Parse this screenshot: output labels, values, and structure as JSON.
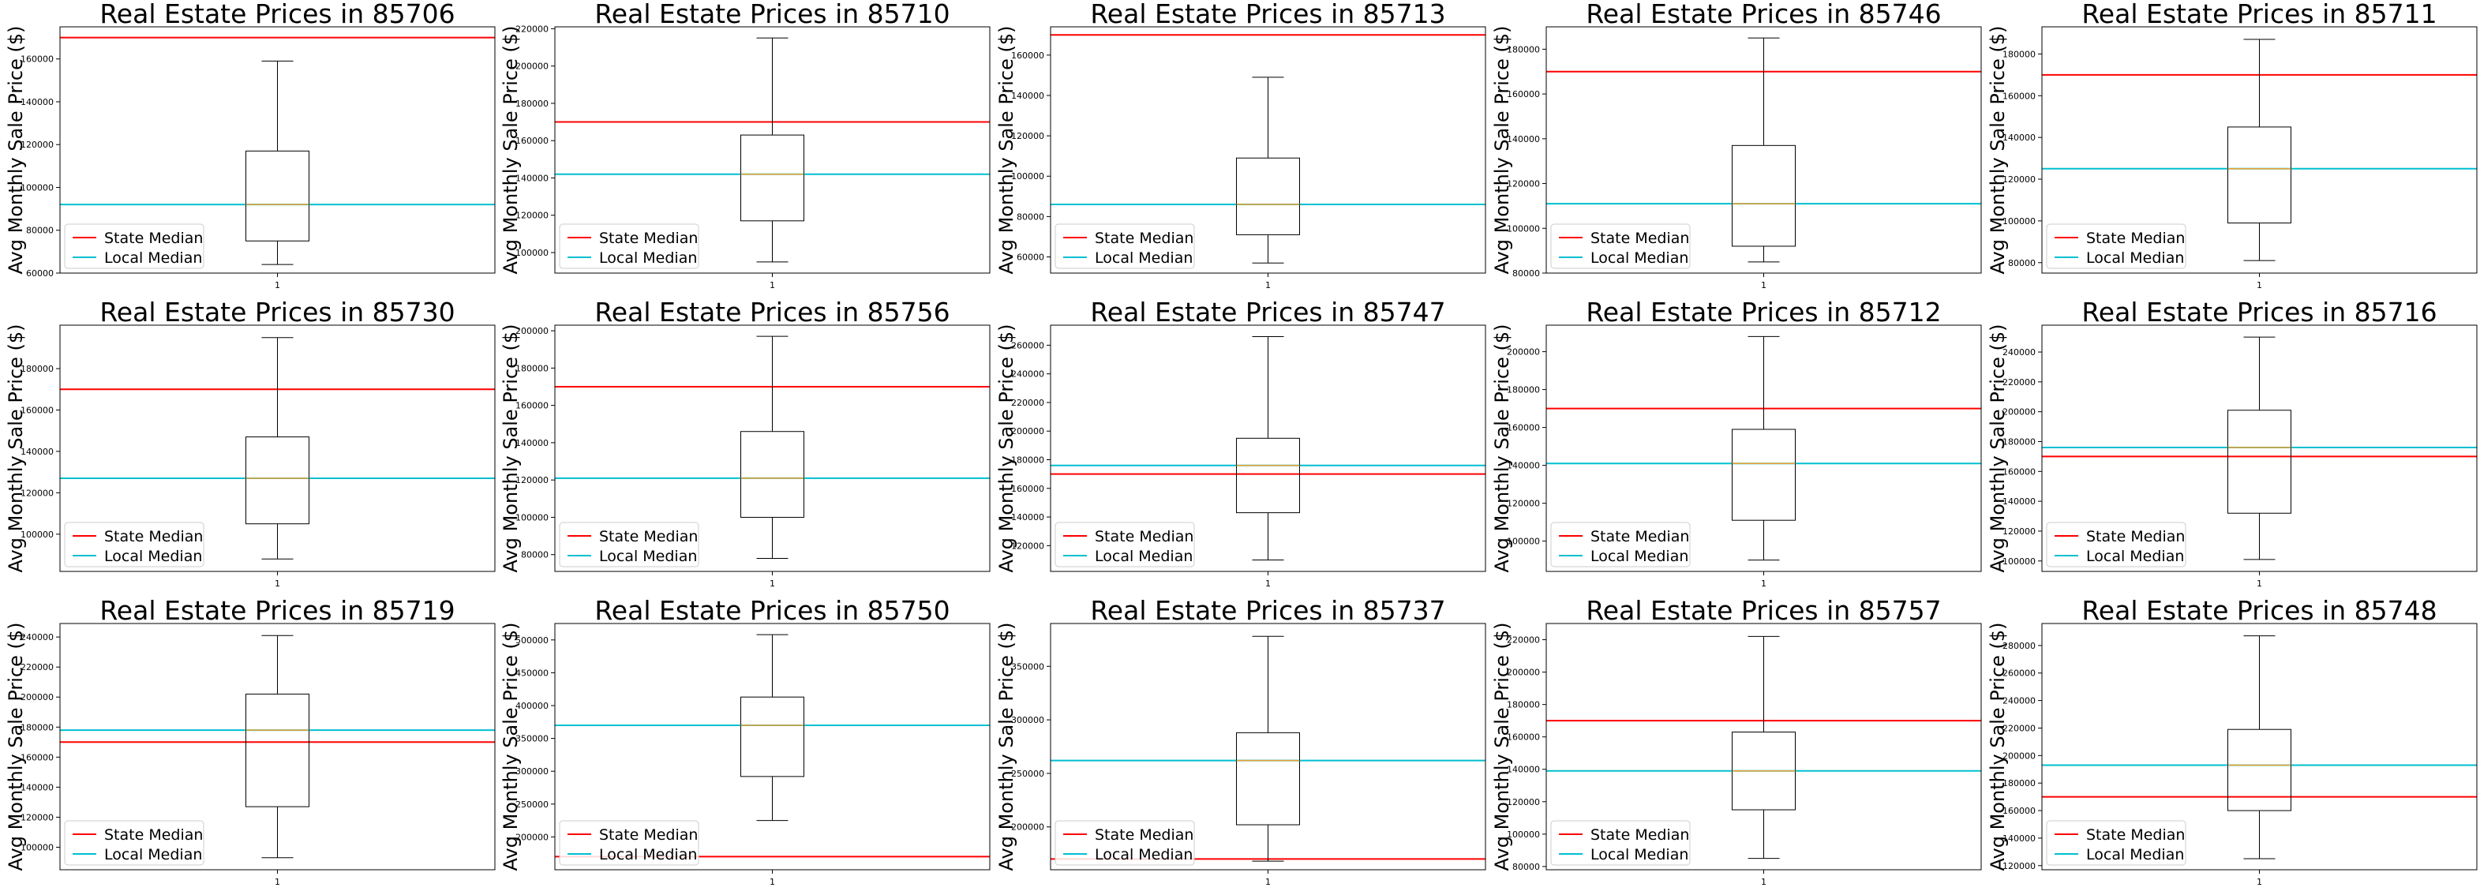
{
  "chart_data": [
    {
      "type": "box",
      "title": "Real Estate Prices in 85706",
      "ylabel": "Avg Monthly Sale Price ($)",
      "xtick": "1",
      "ylim": [
        60000,
        175000
      ],
      "yticks": [
        60000,
        80000,
        100000,
        120000,
        140000,
        160000
      ],
      "box": {
        "whislo": 64000,
        "q1": 75000,
        "med": 92000,
        "q3": 117000,
        "whishi": 159000
      },
      "state_median": 170000,
      "local_median": 92000,
      "legend": [
        "State Median",
        "Local Median"
      ]
    },
    {
      "type": "box",
      "title": "Real Estate Prices in 85710",
      "ylabel": "Avg Monthly Sale Price ($)",
      "xtick": "1",
      "ylim": [
        89000,
        221000
      ],
      "yticks": [
        100000,
        120000,
        140000,
        160000,
        180000,
        200000,
        220000
      ],
      "box": {
        "whislo": 95000,
        "q1": 117000,
        "med": 142000,
        "q3": 163000,
        "whishi": 215000
      },
      "state_median": 170000,
      "local_median": 142000,
      "legend": [
        "State Median",
        "Local Median"
      ]
    },
    {
      "type": "box",
      "title": "Real Estate Prices in 85713",
      "ylabel": "Avg Monthly Sale Price ($)",
      "xtick": "1",
      "ylim": [
        52000,
        174000
      ],
      "yticks": [
        60000,
        80000,
        100000,
        120000,
        140000,
        160000
      ],
      "box": {
        "whislo": 57000,
        "q1": 71000,
        "med": 86000,
        "q3": 109000,
        "whishi": 149000
      },
      "state_median": 170000,
      "local_median": 86000,
      "legend": [
        "State Median",
        "Local Median"
      ]
    },
    {
      "type": "box",
      "title": "Real Estate Prices in 85746",
      "ylabel": "Avg Monthly Sale Price ($)",
      "xtick": "1",
      "ylim": [
        80000,
        190000
      ],
      "yticks": [
        80000,
        100000,
        120000,
        140000,
        160000,
        180000
      ],
      "box": {
        "whislo": 85000,
        "q1": 92000,
        "med": 111000,
        "q3": 137000,
        "whishi": 185000
      },
      "state_median": 170000,
      "local_median": 111000,
      "legend": [
        "State Median",
        "Local Median"
      ]
    },
    {
      "type": "box",
      "title": "Real Estate Prices in 85711",
      "ylabel": "Avg Monthly Sale Price ($)",
      "xtick": "1",
      "ylim": [
        75000,
        193000
      ],
      "yticks": [
        80000,
        100000,
        120000,
        140000,
        160000,
        180000
      ],
      "box": {
        "whislo": 81000,
        "q1": 99000,
        "med": 125000,
        "q3": 145000,
        "whishi": 187000
      },
      "state_median": 170000,
      "local_median": 125000,
      "legend": [
        "State Median",
        "Local Median"
      ]
    },
    {
      "type": "box",
      "title": "Real Estate Prices in 85730",
      "ylabel": "Avg Monthly Sale Price ($)",
      "xtick": "1",
      "ylim": [
        82000,
        201000
      ],
      "yticks": [
        100000,
        120000,
        140000,
        160000,
        180000
      ],
      "box": {
        "whislo": 88000,
        "q1": 105000,
        "med": 127000,
        "q3": 147000,
        "whishi": 195000
      },
      "state_median": 170000,
      "local_median": 127000,
      "legend": [
        "State Median",
        "Local Median"
      ]
    },
    {
      "type": "box",
      "title": "Real Estate Prices in 85756",
      "ylabel": "Avg Monthly Sale Price ($)",
      "xtick": "1",
      "ylim": [
        71000,
        203000
      ],
      "yticks": [
        80000,
        100000,
        120000,
        140000,
        160000,
        180000,
        200000
      ],
      "box": {
        "whislo": 78000,
        "q1": 100000,
        "med": 121000,
        "q3": 146000,
        "whishi": 197000
      },
      "state_median": 170000,
      "local_median": 121000,
      "legend": [
        "State Median",
        "Local Median"
      ]
    },
    {
      "type": "box",
      "title": "Real Estate Prices in 85747",
      "ylabel": "Avg Monthly Sale Price ($)",
      "xtick": "1",
      "ylim": [
        102000,
        274000
      ],
      "yticks": [
        120000,
        140000,
        160000,
        180000,
        200000,
        220000,
        240000,
        260000
      ],
      "box": {
        "whislo": 110000,
        "q1": 143000,
        "med": 176000,
        "q3": 195000,
        "whishi": 266000
      },
      "state_median": 170000,
      "local_median": 176000,
      "legend": [
        "State Median",
        "Local Median"
      ]
    },
    {
      "type": "box",
      "title": "Real Estate Prices in 85712",
      "ylabel": "Avg Monthly Sale Price ($)",
      "xtick": "1",
      "ylim": [
        84000,
        214000
      ],
      "yticks": [
        100000,
        120000,
        140000,
        160000,
        180000,
        200000
      ],
      "box": {
        "whislo": 90000,
        "q1": 111000,
        "med": 141000,
        "q3": 159000,
        "whishi": 208000
      },
      "state_median": 170000,
      "local_median": 141000,
      "legend": [
        "State Median",
        "Local Median"
      ]
    },
    {
      "type": "box",
      "title": "Real Estate Prices in 85716",
      "ylabel": "Avg Monthly Sale Price ($)",
      "xtick": "1",
      "ylim": [
        93000,
        258000
      ],
      "yticks": [
        100000,
        120000,
        140000,
        160000,
        180000,
        200000,
        220000,
        240000
      ],
      "box": {
        "whislo": 101000,
        "q1": 132000,
        "med": 176000,
        "q3": 201000,
        "whishi": 250000
      },
      "state_median": 170000,
      "local_median": 176000,
      "legend": [
        "State Median",
        "Local Median"
      ]
    },
    {
      "type": "box",
      "title": "Real Estate Prices in 85719",
      "ylabel": "Avg Monthly Sale Price ($)",
      "xtick": "1",
      "ylim": [
        85000,
        249000
      ],
      "yticks": [
        100000,
        120000,
        140000,
        160000,
        180000,
        200000,
        220000,
        240000
      ],
      "box": {
        "whislo": 93000,
        "q1": 127000,
        "med": 178000,
        "q3": 202000,
        "whishi": 241000
      },
      "state_median": 170000,
      "local_median": 178000,
      "legend": [
        "State Median",
        "Local Median"
      ]
    },
    {
      "type": "box",
      "title": "Real Estate Prices in 85750",
      "ylabel": "Avg Monthly Sale Price ($)",
      "xtick": "1",
      "ylim": [
        150000,
        525000
      ],
      "yticks": [
        200000,
        250000,
        300000,
        350000,
        400000,
        450000,
        500000
      ],
      "box": {
        "whislo": 225000,
        "q1": 292000,
        "med": 370000,
        "q3": 413000,
        "whishi": 508000
      },
      "state_median": 170000,
      "local_median": 370000,
      "legend": [
        "State Median",
        "Local Median"
      ]
    },
    {
      "type": "box",
      "title": "Real Estate Prices in 85737",
      "ylabel": "Avg Monthly Sale Price ($)",
      "xtick": "1",
      "ylim": [
        160000,
        390000
      ],
      "yticks": [
        200000,
        250000,
        300000,
        350000
      ],
      "box": {
        "whislo": 168000,
        "q1": 202000,
        "med": 262000,
        "q3": 288000,
        "whishi": 378000
      },
      "state_median": 170000,
      "local_median": 262000,
      "legend": [
        "State Median",
        "Local Median"
      ]
    },
    {
      "type": "box",
      "title": "Real Estate Prices in 85757",
      "ylabel": "Avg Monthly Sale Price ($)",
      "xtick": "1",
      "ylim": [
        78000,
        230000
      ],
      "yticks": [
        80000,
        100000,
        120000,
        140000,
        160000,
        180000,
        200000,
        220000
      ],
      "box": {
        "whislo": 85000,
        "q1": 115000,
        "med": 139000,
        "q3": 163000,
        "whishi": 222000
      },
      "state_median": 170000,
      "local_median": 139000,
      "legend": [
        "State Median",
        "Local Median"
      ]
    },
    {
      "type": "box",
      "title": "Real Estate Prices in 85748",
      "ylabel": "Avg Monthly Sale Price ($)",
      "xtick": "1",
      "ylim": [
        117000,
        296000
      ],
      "yticks": [
        120000,
        140000,
        160000,
        180000,
        200000,
        220000,
        240000,
        260000,
        280000
      ],
      "box": {
        "whislo": 125000,
        "q1": 160000,
        "med": 193000,
        "q3": 219000,
        "whishi": 287000
      },
      "state_median": 170000,
      "local_median": 193000,
      "legend": [
        "State Median",
        "Local Median"
      ]
    }
  ],
  "colors": {
    "state": "#ff0000",
    "local": "#00bfd0",
    "median": "#f0a030",
    "box": "#000000",
    "axis": "#000000"
  }
}
